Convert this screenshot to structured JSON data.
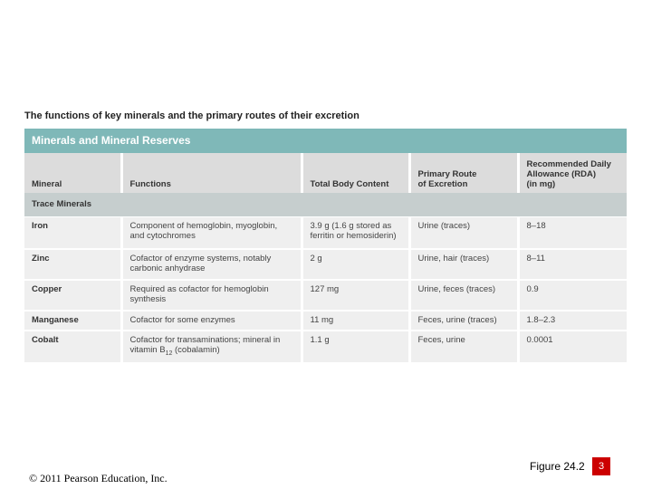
{
  "figure_title": "The functions of key minerals and the primary routes of their excretion",
  "table": {
    "banner": "Minerals and Mineral Reserves",
    "headers": {
      "mineral": "Mineral",
      "functions": "Functions",
      "total_body_content": "Total Body Content",
      "excretion_line1": "Primary Route",
      "excretion_line2": "of Excretion",
      "rda_line1": "Recommended Daily",
      "rda_line2": "Allowance (RDA)",
      "rda_line3": "(in mg)"
    },
    "section": "Trace Minerals",
    "rows": [
      {
        "mineral": "Iron",
        "functions": "Component of hemoglobin, myoglobin, and cytochromes",
        "content": "3.9 g (1.6 g stored as ferritin or hemosiderin)",
        "excretion": "Urine (traces)",
        "rda": "8–18"
      },
      {
        "mineral": "Zinc",
        "functions": "Cofactor of enzyme systems, notably carbonic anhydrase",
        "content": "2 g",
        "excretion": "Urine, hair (traces)",
        "rda": "8–11"
      },
      {
        "mineral": "Copper",
        "functions": "Required as cofactor for hemoglobin synthesis",
        "content": "127 mg",
        "excretion": "Urine, feces (traces)",
        "rda": "0.9"
      },
      {
        "mineral": "Manganese",
        "functions": "Cofactor for some enzymes",
        "content": "11 mg",
        "excretion": "Feces, urine (traces)",
        "rda": "1.8–2.3"
      },
      {
        "mineral": "Cobalt",
        "functions_line1": "Cofactor for transaminations; mineral in",
        "functions_line2_pre": "vitamin B",
        "functions_line2_sub": "12",
        "functions_line2_post": " (cobalamin)",
        "content": "1.1 g",
        "excretion": "Feces, urine",
        "rda": "0.0001"
      }
    ]
  },
  "footer": {
    "copyright": "© 2011 Pearson Education, Inc.",
    "figure_label": "Figure 24.2",
    "page_number": "3"
  },
  "colors": {
    "banner": "#7fb8b8",
    "header_bg": "#dcdcdc",
    "section_bg": "#c6cece",
    "row_bg": "#efefef",
    "page_badge": "#cc0000"
  }
}
